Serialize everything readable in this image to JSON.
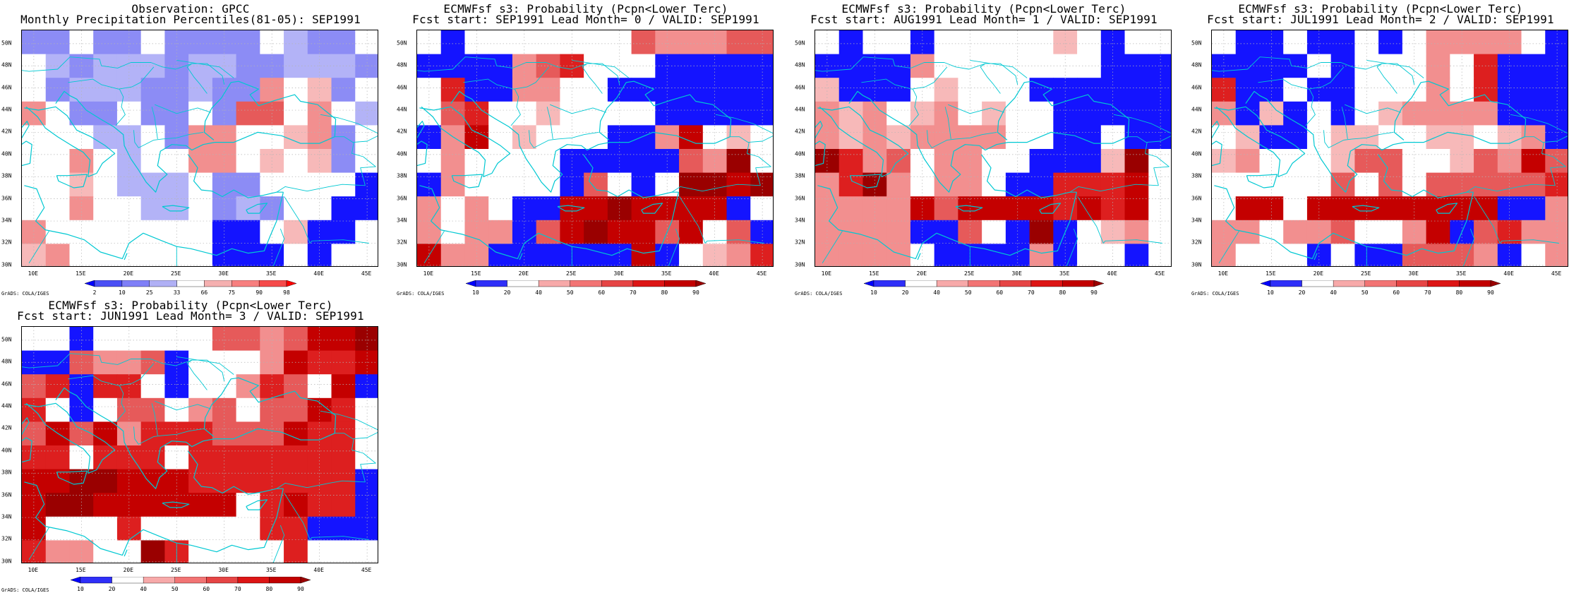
{
  "panels": [
    {
      "id": "obs",
      "title_line1": "Observation: GPCC",
      "title_line2": "Monthly Precipitation Percentiles(81-05): SEP1991",
      "colorbar": "obs",
      "grid": [
        "b1 b1 w b1 b1 w b1 b1 b1 b1 w b2 b1 b1 w",
        "w b2 b1 b2 b2 b2 b1 b2 b2 b1 b1 b2 b2 b2 b1",
        "w b1 b2 b2 b2 b1 b1 b2 b1 b1 r2 w r1 b1 w",
        "r2 w b1 b1 w b1 b1 w b1 r3 r3 w r2 w b2",
        "w w w b2 b2 w b1 r2 r2 w w r1 r2 b1 w",
        "w w r2 w b2 w w r2 r2 w r1 w r1 b1 w",
        "w w r1 w b2 b2 b2 w b1 b1 w w w w b3",
        "w w r2 w w b2 b2 w b1 b2 b1 w w b3 b3",
        "r2 w w w w w w w b3 b3 w r1 b3 b3 w",
        "r1 r2 w w w w w w b3 b3 b3 w b3 w w"
      ]
    },
    {
      "id": "lead0",
      "title_line1": "ECMWFsf s3: Probability (Pcpn<Lower Terc)",
      "title_line2": "Fcst start: SEP1991   Lead Month= 0 / VALID: SEP1991",
      "colorbar": "prob",
      "grid": [
        "w b3 w w w w w w w r3 r2 r2 r2 r3 r3",
        "b3 b3 b3 b3 r2 r3 r4 w w w b3 b3 b3 b3 b3",
        "w r4 b3 b3 r2 r2 w w b3 b3 b3 b3 b3 b3 b3",
        "w r3 r4 w w r1 w w w w b3 b3 b3 b3 b3",
        "b3 r2 r5 w r1 w w w b3 b3 r2 r5 w r1 w",
        "w r2 w w w w b3 b3 b3 b3 b3 r3 r2 r6 w",
        "b3 r2 w w w w b3 r3 w b3 w r6 r6 r5 r6",
        "r2 w r2 w b3 b3 r5 r5 r6 r5 r5 r5 r5 b3 w",
        "r2 w r2 r2 b3 r3 r5 r6 r5 r5 r3 r5 w r3 b3",
        "r5 r2 r2 b3 b3 b3 b3 b3 b3 r5 b3 w r1 r2 r4"
      ]
    },
    {
      "id": "lead1",
      "title_line1": "ECMWFsf s3: Probability (Pcpn<Lower Terc)",
      "title_line2": "Fcst start: AUG1991   Lead Month= 1 / VALID: SEP1991",
      "colorbar": "prob",
      "grid": [
        "w b3 w w b3 w w w w w r1 w b3 w w",
        "b3 b3 b3 b3 r2 w w w w w w w b3 b3 b3",
        "r1 b3 b3 b3 w r1 w w w b3 b3 b3 b3 b3 b3",
        "r2 r1 r2 w r1 r2 w r1 w w b3 b3 b3 b3 b3",
        "r2 r1 r2 r1 r2 r2 r2 r2 w w b3 b3 w b3 b3",
        "r6 r4 r2 r3 w r2 r2 w w b3 b3 b3 r1 r6 w",
        "r2 r4 r6 r2 w r2 r2 w b3 b3 r4 r4 r4 r5 w",
        "r2 r2 r2 r2 r5 r3 r5 r5 r5 r5 r4 r5 r4 r5 w",
        "r2 r2 r2 r2 b3 b3 r3 w b3 r6 b3 w r1 r2 w",
        "r2 r2 r2 r2 w b3 b3 b3 b3 r2 b3 w w b3 w"
      ]
    },
    {
      "id": "lead2",
      "title_line1": "ECMWFsf s3: Probability (Pcpn<Lower Terc)",
      "title_line2": "Fcst start: JUL1991   Lead Month= 2 / VALID: SEP1991",
      "colorbar": "prob",
      "grid": [
        "w b3 b3 w b3 b3 w b3 w r2 r2 r2 r2 w b3",
        "b3 b3 b3 b3 w b3 w w w r2 w r4 b3 b3 b3",
        "r4 b3 b3 w b3 b3 w w w r2 w r4 b3 b3 b3",
        "r2 b3 r1 b3 w b3 w r1 r2 r2 r2 r2 b3 b3 b3",
        "w r1 b3 b3 w r1 r1 w w r1 r1 w r1 r2 b3",
        "r1 r2 w w w r1 r3 r3 w w r1 r3 r2 r5 r3",
        "w w w w w r3 w r3 w r3 r3 r3 r3 r3 r4",
        "w r5 r5 w r5 r5 r5 r5 r5 r5 r5 r5 b3 b3 r2",
        "r2 r2 w r2 r2 r3 w w r2 r5 b3 r3 r4 r2 r2",
        "r2 w w w b3 w b3 b3 r3 r3 r3 r2 b3 w r2"
      ]
    },
    {
      "id": "lead3",
      "title_line1": "ECMWFsf s3: Probability (Pcpn<Lower Terc)",
      "title_line2": "Fcst start: JUN1991   Lead Month= 3 / VALID: SEP1991",
      "colorbar": "prob",
      "grid": [
        "w w b3 w w w w w r3 r3 r2 r3 r5 r5 r6",
        "b3 b3 r3 r2 r2 r3 b3 w w w r2 r5 r4 r4 r5",
        "r3 r4 b3 r4 r4 w b3 w w r2 r4 r3 w r5 b3",
        "r4 w b3 w r3 r3 w r2 r3 w r3 r3 r5 r4 w",
        "r3 r5 r3 r5 r2 r4 r4 r4 r3 r3 r3 r5 r4 r4 w",
        "r4 r4 w r4 r4 r4 w r4 r4 r4 r4 r4 r4 r4 w",
        "r5 r5 r6 r6 r5 r5 r5 r4 r4 r4 r4 r4 r4 r4 b3",
        "r5 r6 r6 r5 r5 r5 r5 r5 r5 w r4 r5 r4 r4 b3",
        "r5 w w w r4 w w w w w r4 r4 b3 b3 b3",
        "r4 r2 r2 w w r6 r4 w w w w r4 w w w"
      ]
    }
  ],
  "axes": {
    "lat_labels": [
      "50N",
      "48N",
      "46N",
      "44N",
      "42N",
      "40N",
      "38N",
      "36N",
      "34N",
      "32N",
      "30N"
    ],
    "lat_values": [
      50,
      48,
      46,
      44,
      42,
      40,
      38,
      36,
      34,
      32,
      30
    ],
    "lon_labels": [
      "10E",
      "15E",
      "20E",
      "25E",
      "30E",
      "35E",
      "40E",
      "45E"
    ],
    "lon_values": [
      10,
      15,
      20,
      25,
      30,
      35,
      40,
      45
    ],
    "lat_range": [
      29.8,
      51.2
    ],
    "lon_range": [
      8.75,
      46.25
    ]
  },
  "colorbars": {
    "obs": {
      "labels": [
        "2",
        "10",
        "25",
        "33",
        "66",
        "75",
        "90",
        "98"
      ],
      "colors": [
        "#0000ff",
        "#4a4ff5",
        "#7f7ff7",
        "#b0b0f5",
        "#ffffff",
        "#f5b0b0",
        "#f77f7f",
        "#f54a4a",
        "#ff0000"
      ]
    },
    "prob": {
      "labels": [
        "10",
        "20",
        "40",
        "50",
        "60",
        "70",
        "80",
        "90"
      ],
      "colors": [
        "#0000ff",
        "#2f2ff8",
        "#ffffff",
        "#f7a9a9",
        "#f27474",
        "#e64545",
        "#dd1515",
        "#c20000",
        "#9a0000"
      ]
    }
  },
  "palette": {
    "w": "#ffffff",
    "b1": "#8c8cf5",
    "b2": "#b3b3f7",
    "b3": "#1414ff",
    "r1": "#f7b9b9",
    "r2": "#f28f8f",
    "r3": "#e65a5a",
    "r4": "#dd1f1f",
    "r5": "#c40000",
    "r6": "#9a0000",
    "coast": "#00c8d2",
    "grid_line": "#b4b4b4"
  },
  "credit": "GrADS: COLA/IGES"
}
